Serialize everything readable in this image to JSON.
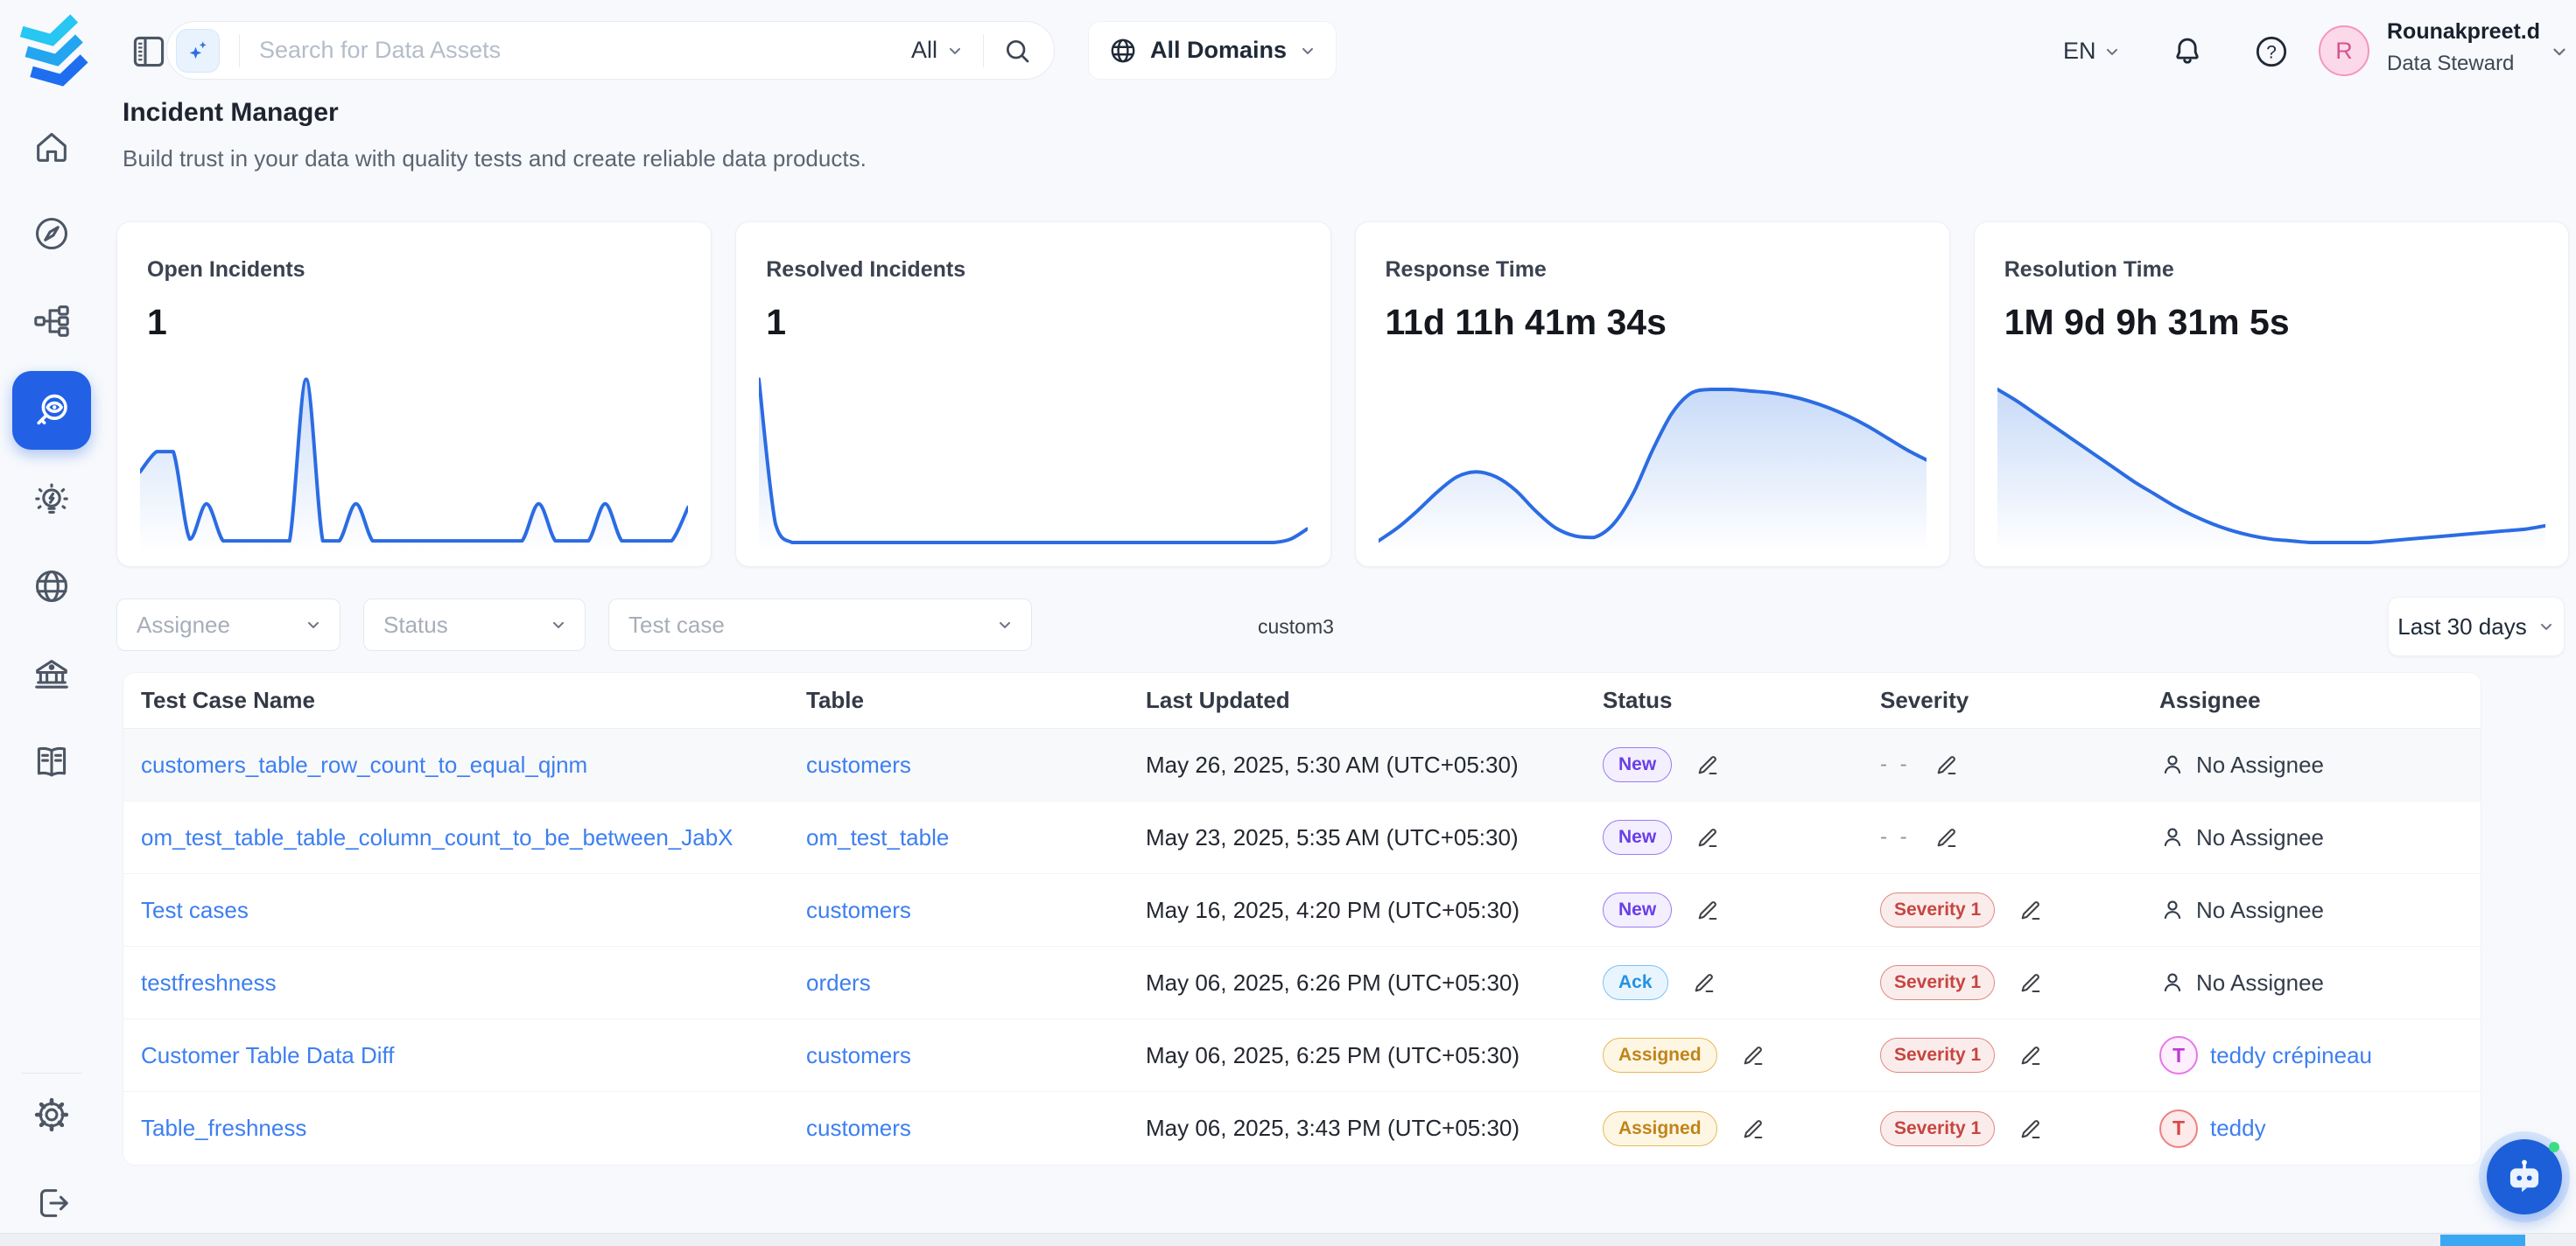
{
  "topbar": {
    "search_placeholder": "Search for Data Assets",
    "search_scope": "All",
    "domains_label": "All Domains",
    "language": "EN",
    "help_glyph": "?",
    "icons": [
      "collapse-panel-icon",
      "ai-sparkle-icon",
      "search-icon",
      "globe-icon",
      "bell-icon",
      "help-icon"
    ],
    "user": {
      "initial": "R",
      "name": "Rounakpreet.d",
      "role": "Data Steward"
    }
  },
  "sidebar": {
    "items": [
      "home",
      "explore",
      "lineage",
      "data-quality",
      "insights",
      "domains",
      "govern",
      "glossary"
    ],
    "active": "data-quality",
    "footer": [
      "settings",
      "logout"
    ]
  },
  "page": {
    "title": "Incident Manager",
    "subtitle": "Build trust in your data with quality tests and create reliable data products."
  },
  "filters": {
    "assignee_placeholder": "Assignee",
    "status_placeholder": "Status",
    "test_case_placeholder": "Test case",
    "stray_label": "custom3",
    "date_range": "Last 30 days"
  },
  "chart_data": [
    {
      "name": "open-incidents",
      "type": "area",
      "title": "Open Incidents",
      "value": "1",
      "ylim": [
        0,
        100
      ],
      "grid": false,
      "line_color": "#2b6ce3",
      "values": [
        45,
        57,
        57,
        5,
        26,
        4,
        4,
        4,
        4,
        4,
        100,
        4,
        4,
        26,
        4,
        4,
        4,
        4,
        4,
        4,
        4,
        4,
        4,
        4,
        26,
        4,
        4,
        4,
        26,
        4,
        4,
        4,
        4,
        24
      ]
    },
    {
      "name": "resolved-incidents",
      "type": "area",
      "title": "Resolved Incidents",
      "value": "1",
      "ylim": [
        0,
        100
      ],
      "grid": false,
      "line_color": "#2b6ce3",
      "values": [
        100,
        14,
        3,
        3,
        3,
        3,
        3,
        3,
        3,
        3,
        3,
        3,
        3,
        3,
        3,
        3,
        3,
        3,
        3,
        3,
        3,
        3,
        3,
        3,
        3,
        3,
        3,
        3,
        3,
        3,
        3,
        3,
        5,
        11
      ]
    },
    {
      "name": "response-time",
      "type": "area",
      "title": "Response Time",
      "value": "11d 11h 41m 34s",
      "ylim": [
        0,
        100
      ],
      "grid": false,
      "line_color": "#2b6ce3",
      "values": [
        4,
        12,
        22,
        33,
        42,
        45,
        42,
        34,
        22,
        12,
        7,
        6,
        14,
        32,
        58,
        80,
        92,
        94,
        94,
        93,
        92,
        90,
        87,
        83,
        78,
        72,
        65,
        58,
        52
      ]
    },
    {
      "name": "resolution-time",
      "type": "area",
      "title": "Resolution Time",
      "value": "1M 9d 9h 31m 5s",
      "ylim": [
        0,
        100
      ],
      "grid": false,
      "line_color": "#2b6ce3",
      "values": [
        94,
        87,
        79,
        71,
        63,
        55,
        47,
        39,
        32,
        25,
        19,
        14,
        10,
        7,
        5,
        4,
        3,
        3,
        3,
        3,
        4,
        5,
        6,
        7,
        8,
        9,
        10,
        11,
        13
      ]
    }
  ],
  "table": {
    "columns": [
      "Test Case Name",
      "Table",
      "Last Updated",
      "Status",
      "Severity",
      "Assignee"
    ],
    "rows": [
      {
        "name": "customers_table_row_count_to_equal_qjnm",
        "table": "customers",
        "updated": "May 26, 2025, 5:30 AM (UTC+05:30)",
        "status": "New",
        "severity": "- -",
        "assignee": "No Assignee"
      },
      {
        "name": "om_test_table_table_column_count_to_be_between_JabX",
        "table": "om_test_table",
        "updated": "May 23, 2025, 5:35 AM (UTC+05:30)",
        "status": "New",
        "severity": "- -",
        "assignee": "No Assignee"
      },
      {
        "name": "Test cases",
        "table": "customers",
        "updated": "May 16, 2025, 4:20 PM (UTC+05:30)",
        "status": "New",
        "severity": "Severity 1",
        "assignee": "No Assignee"
      },
      {
        "name": "testfreshness",
        "table": "orders",
        "updated": "May 06, 2025, 6:26 PM (UTC+05:30)",
        "status": "Ack",
        "severity": "Severity 1",
        "assignee": "No Assignee"
      },
      {
        "name": "Customer Table Data Diff",
        "table": "customers",
        "updated": "May 06, 2025, 6:25 PM (UTC+05:30)",
        "status": "Assigned",
        "severity": "Severity 1",
        "assignee": "teddy crépineau",
        "assignee_initial": "T"
      },
      {
        "name": "Table_freshness",
        "table": "customers",
        "updated": "May 06, 2025, 3:43 PM (UTC+05:30)",
        "status": "Assigned",
        "severity": "Severity 1",
        "assignee": "teddy",
        "assignee_initial": "T"
      }
    ]
  },
  "colors": {
    "accent": "#2261e6",
    "link": "#3d7ff0",
    "chart_line": "#2b6ce3",
    "scroll_thumb": "#3aa7f3"
  }
}
